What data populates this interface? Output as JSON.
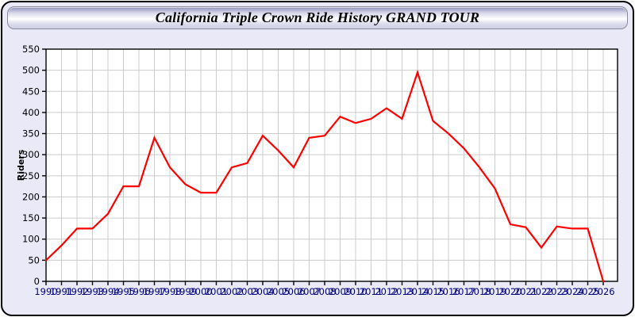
{
  "window": {
    "title": "California Triple Crown Ride History GRAND TOUR"
  },
  "chart_data": {
    "type": "line",
    "title": "California Triple Crown Ride History GRAND TOUR",
    "xlabel": "",
    "ylabel": "Riders",
    "ylim": [
      0,
      550
    ],
    "ytick_step": 50,
    "grid": true,
    "legend_position": "none",
    "x": [
      1990,
      1991,
      1992,
      1993,
      1994,
      1995,
      1996,
      1997,
      1998,
      1999,
      2000,
      2001,
      2002,
      2003,
      2004,
      2005,
      2006,
      2007,
      2008,
      2009,
      2010,
      2011,
      2012,
      2013,
      2014,
      2015,
      2016,
      2017,
      2018,
      2019,
      2020,
      2021,
      2022,
      2023,
      2024,
      2025,
      2026
    ],
    "series": [
      {
        "name": "Riders",
        "color": "#ff0000",
        "values": [
          50,
          85,
          125,
          125,
          160,
          225,
          225,
          340,
          270,
          230,
          210,
          210,
          270,
          280,
          345,
          310,
          270,
          340,
          345,
          390,
          375,
          385,
          410,
          385,
          495,
          380,
          350,
          315,
          270,
          220,
          135,
          128,
          80,
          130,
          125,
          125,
          0
        ]
      }
    ]
  },
  "colors": {
    "panel_background": "#e9e9f8",
    "plot_background": "#ffffff",
    "gridline": "#cccccc",
    "axis": "#000000",
    "y_tick_label": "#000000",
    "x_tick_label": "#000080",
    "line": "#ff0000"
  }
}
